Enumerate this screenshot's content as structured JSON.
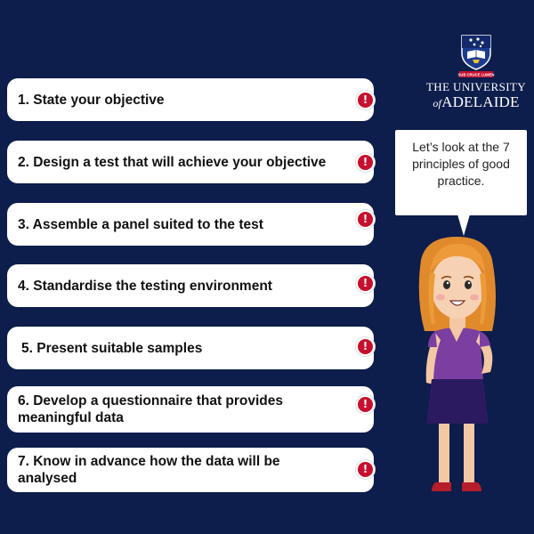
{
  "principles": [
    {
      "label": "1. State your objective"
    },
    {
      "label": "2. Design a test that will achieve your objective"
    },
    {
      "label": "3. Assemble a panel suited to the test"
    },
    {
      "label": "4. Standardise the testing environment"
    },
    {
      "label": "5. Present suitable samples"
    },
    {
      "label": "6. Develop a questionnaire that provides meaningful data"
    },
    {
      "label": "7. Know in advance how the data will be analysed"
    }
  ],
  "alert_icon": {
    "name": "exclamation-icon",
    "glyph": "!",
    "color": "#c8102e"
  },
  "logo": {
    "line1": "THE UNIVERSITY",
    "of": "of",
    "name": "ADELAIDE",
    "crest_motto": "SUB CRUCE LUMEN"
  },
  "speech_bubble": {
    "text": "Let’s look at the 7 principles of good practice."
  },
  "colors": {
    "background": "#0d1d4c",
    "pill": "#ffffff",
    "alert": "#c8102e"
  }
}
